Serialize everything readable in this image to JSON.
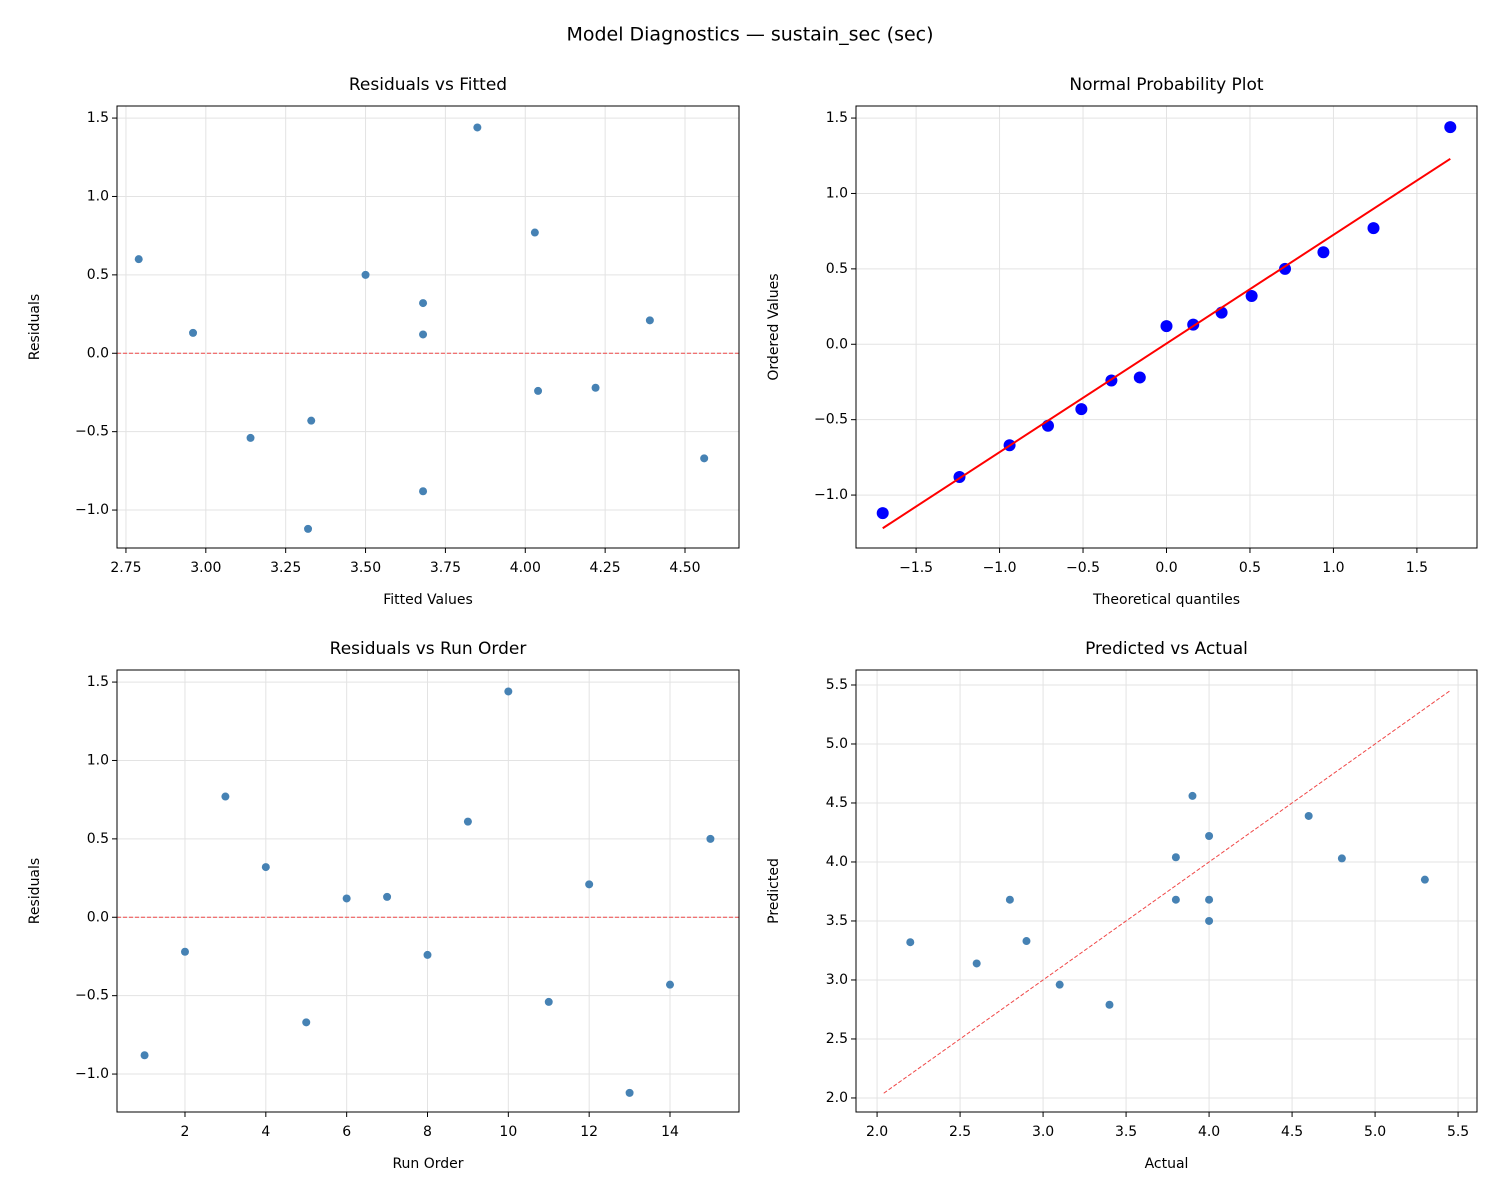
{
  "title": "Model Diagnostics — sustain_sec (sec)",
  "chart_data": [
    {
      "type": "scatter",
      "title": "Residuals vs Fitted",
      "x_label": "Fitted Values",
      "y_label": "Residuals",
      "x": [
        3.32,
        3.14,
        3.68,
        3.33,
        2.96,
        2.79,
        4.04,
        3.68,
        4.56,
        4.22,
        3.68,
        3.5,
        4.39,
        4.03,
        3.85
      ],
      "values": [
        -1.12,
        -0.54,
        -0.88,
        -0.43,
        0.13,
        0.6,
        -0.24,
        0.12,
        -0.67,
        -0.22,
        0.32,
        0.5,
        0.21,
        0.77,
        1.44
      ],
      "color": "#4682b4",
      "grid": true,
      "hlines": [
        {
          "y": 0,
          "color": "#f04848",
          "dashed": true
        }
      ],
      "xlim": [
        2.722,
        4.669
      ],
      "ylim": [
        -1.242,
        1.577
      ],
      "xticks": [
        2.75,
        {
          "value": 3,
          "label": "3.00"
        },
        3.25,
        {
          "value": 3.5,
          "label": "3.50"
        },
        3.75,
        {
          "value": 4,
          "label": "4.00"
        },
        4.25,
        {
          "value": 4.5,
          "label": "4.50"
        }
      ],
      "yticks": [
        {
          "value": -1,
          "label": "−1.0"
        },
        {
          "value": -0.5,
          "label": "−0.5"
        },
        {
          "value": 0,
          "label": "0.0"
        },
        0.5,
        {
          "value": 1,
          "label": "1.0"
        },
        1.5
      ]
    },
    {
      "type": "probability",
      "title": "Normal Probability Plot",
      "x_label": "Theoretical quantiles",
      "y_label": "Ordered Values",
      "x": [
        -1.7,
        -1.24,
        -0.94,
        -0.71,
        -0.51,
        -0.33,
        -0.16,
        0,
        0.16,
        0.33,
        0.51,
        0.71,
        0.94,
        1.24,
        1.7
      ],
      "values": [
        -1.12,
        -0.88,
        -0.67,
        -0.54,
        -0.43,
        -0.24,
        -0.22,
        0.12,
        0.13,
        0.21,
        0.32,
        0.5,
        0.61,
        0.77,
        1.44
      ],
      "color": "#0000ff",
      "grid": true,
      "lines": [
        {
          "x": [
            -1.7,
            1.7
          ],
          "values": [
            -1.22,
            1.23
          ],
          "color": "#ff0000",
          "dashed": false
        }
      ],
      "xlim": [
        -1.86,
        1.86
      ],
      "ylim": [
        -1.351,
        1.58
      ],
      "xticks": [
        {
          "value": -1.5,
          "label": "−1.5"
        },
        {
          "value": -1,
          "label": "−1.0"
        },
        {
          "value": -0.5,
          "label": "−0.5"
        },
        {
          "value": 0,
          "label": "0.0"
        },
        0.5,
        {
          "value": 1,
          "label": "1.0"
        },
        1.5
      ],
      "yticks": [
        {
          "value": -1,
          "label": "−1.0"
        },
        {
          "value": -0.5,
          "label": "−0.5"
        },
        {
          "value": 0,
          "label": "0.0"
        },
        0.5,
        {
          "value": 1,
          "label": "1.0"
        },
        1.5
      ]
    },
    {
      "type": "scatter",
      "title": "Residuals vs Run Order",
      "x_label": "Run Order",
      "y_label": "Residuals",
      "x": [
        1,
        2,
        3,
        4,
        5,
        6,
        7,
        8,
        9,
        10,
        11,
        12,
        13,
        14,
        15
      ],
      "values": [
        -0.88,
        -0.22,
        0.77,
        0.32,
        -0.67,
        0.12,
        0.13,
        -0.24,
        0.61,
        1.44,
        -0.54,
        0.21,
        -1.12,
        -0.43,
        0.5
      ],
      "color": "#4682b4",
      "grid": true,
      "hlines": [
        {
          "y": 0,
          "color": "#f04848",
          "dashed": true
        }
      ],
      "xlim": [
        0.318,
        15.707
      ],
      "ylim": [
        -1.242,
        1.577
      ],
      "xticks": [
        2,
        4,
        6,
        8,
        10,
        12,
        14
      ],
      "yticks": [
        {
          "value": -1,
          "label": "−1.0"
        },
        {
          "value": -0.5,
          "label": "−0.5"
        },
        {
          "value": 0,
          "label": "0.0"
        },
        0.5,
        {
          "value": 1,
          "label": "1.0"
        },
        1.5
      ]
    },
    {
      "type": "scatter",
      "title": "Predicted vs Actual",
      "x_label": "Actual",
      "y_label": "Predicted",
      "x": [
        2.2,
        2.6,
        2.8,
        2.9,
        3.1,
        3.4,
        3.8,
        3.8,
        3.9,
        4.0,
        4.0,
        4.0,
        4.6,
        4.8,
        5.3
      ],
      "values": [
        3.32,
        3.14,
        3.68,
        3.33,
        2.96,
        2.79,
        4.04,
        3.68,
        4.56,
        4.22,
        3.68,
        3.5,
        4.39,
        4.03,
        3.85
      ],
      "color": "#4682b4",
      "grid": true,
      "lines": [
        {
          "x": [
            2.04,
            5.45
          ],
          "values": [
            2.04,
            5.45
          ],
          "color": "#f04848",
          "dashed": true
        }
      ],
      "xlim": [
        1.873,
        5.614
      ],
      "ylim": [
        1.881,
        5.627
      ],
      "xticks": [
        {
          "value": 2,
          "label": "2.0"
        },
        2.5,
        {
          "value": 3,
          "label": "3.0"
        },
        3.5,
        {
          "value": 4,
          "label": "4.0"
        },
        4.5,
        {
          "value": 5,
          "label": "5.0"
        },
        5.5
      ],
      "yticks": [
        {
          "value": 2,
          "label": "2.0"
        },
        2.5,
        {
          "value": 3,
          "label": "3.0"
        },
        3.5,
        {
          "value": 4,
          "label": "4.0"
        },
        4.5,
        {
          "value": 5,
          "label": "5.0"
        },
        5.5
      ]
    }
  ]
}
